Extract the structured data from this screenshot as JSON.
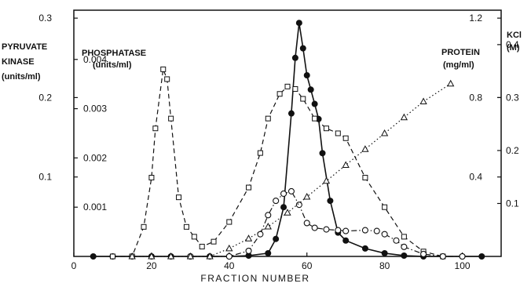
{
  "chart_data": {
    "type": "line",
    "xlabel": "FRACTION NUMBER",
    "xlim": [
      0,
      110
    ],
    "x_ticks": [
      "0",
      "20",
      "40",
      "60",
      "80",
      "100"
    ],
    "axes": {
      "pyruvate_kinase": {
        "label_lines": [
          "PYRUVATE",
          "KINASE",
          "(units/ml)"
        ],
        "ticks": [
          "0.1",
          "0.2",
          "0.3"
        ],
        "range": [
          0,
          0.31
        ]
      },
      "phosphatase": {
        "label_lines": [
          "PHOSPHATASE",
          "(units/ml)"
        ],
        "ticks": [
          "0.001",
          "0.002",
          "0.003",
          "0.004"
        ],
        "range": [
          0,
          0.005
        ]
      },
      "protein": {
        "label_lines": [
          "PROTEIN",
          "(mg/ml)"
        ],
        "ticks": [
          "0.4",
          "0.8",
          "1.2"
        ],
        "range": [
          0,
          1.24
        ]
      },
      "kcl": {
        "label_lines": [
          "KCl",
          "(M)"
        ],
        "ticks": [
          "0.1",
          "0.2",
          "0.3",
          "0.4"
        ],
        "range": [
          0,
          0.465
        ]
      }
    },
    "series": [
      {
        "axis": "pyruvate_kinase",
        "marker": "filled-circle",
        "style": "solid",
        "x": [
          5,
          10,
          15,
          20,
          25,
          30,
          35,
          40,
          45,
          50,
          52,
          54,
          56,
          57,
          58,
          59,
          60,
          61,
          62,
          63,
          64,
          66,
          68,
          70,
          75,
          80,
          85,
          90,
          95,
          100,
          105
        ],
        "y": [
          0,
          0,
          0,
          0,
          0,
          0,
          0,
          0,
          0.001,
          0.004,
          0.022,
          0.062,
          0.18,
          0.25,
          0.294,
          0.262,
          0.228,
          0.21,
          0.192,
          0.173,
          0.13,
          0.07,
          0.03,
          0.02,
          0.01,
          0.004,
          0.001,
          0,
          0,
          0,
          0
        ]
      },
      {
        "axis": "phosphatase",
        "marker": "open-square",
        "style": "dashed",
        "x": [
          10,
          15,
          18,
          20,
          21,
          23,
          24,
          25,
          27,
          29,
          31,
          33,
          36,
          40,
          45,
          48,
          50,
          53,
          55,
          57,
          59,
          62,
          65,
          68,
          70,
          75,
          80,
          85,
          90,
          95
        ],
        "y": [
          0,
          0,
          0.0006,
          0.0016,
          0.0026,
          0.0038,
          0.0036,
          0.0028,
          0.0012,
          0.0006,
          0.0004,
          0.0002,
          0.0003,
          0.0007,
          0.0014,
          0.0021,
          0.0028,
          0.0033,
          0.00345,
          0.0034,
          0.0032,
          0.0028,
          0.0026,
          0.0025,
          0.0024,
          0.0016,
          0.001,
          0.0004,
          0.0001,
          0
        ]
      },
      {
        "axis": "pyruvate_kinase",
        "marker": "open-circle",
        "style": "dash-dot",
        "x": [
          30,
          40,
          45,
          48,
          50,
          52,
          54,
          56,
          58,
          60,
          62,
          65,
          68,
          70,
          75,
          78,
          80,
          83,
          85,
          90,
          95,
          100
        ],
        "y": [
          0,
          0,
          0.007,
          0.028,
          0.052,
          0.07,
          0.079,
          0.082,
          0.065,
          0.042,
          0.036,
          0.034,
          0.033,
          0.032,
          0.033,
          0.032,
          0.028,
          0.02,
          0.012,
          0.003,
          0,
          0
        ]
      },
      {
        "axis": "protein",
        "marker": "open-triangle",
        "style": "dotted",
        "x": [
          15,
          20,
          25,
          30,
          35,
          40,
          45,
          50,
          55,
          60,
          65,
          70,
          75,
          80,
          85,
          90,
          97
        ],
        "y": [
          0,
          0,
          0,
          0,
          0,
          0.04,
          0.09,
          0.15,
          0.22,
          0.3,
          0.38,
          0.46,
          0.54,
          0.62,
          0.7,
          0.78,
          0.87
        ]
      }
    ],
    "legend": "none"
  }
}
